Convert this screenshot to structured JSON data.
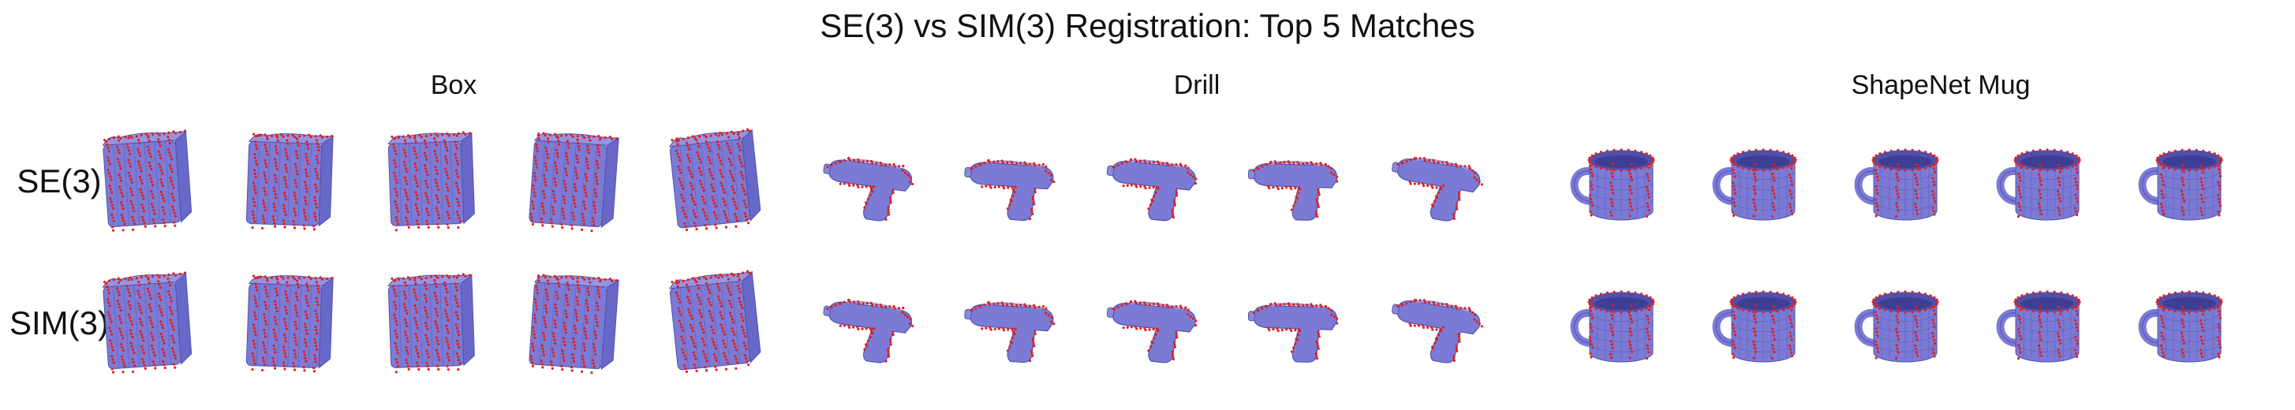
{
  "title": "SE(3) vs SIM(3) Registration: Top 5 Matches",
  "columns": [
    {
      "label": "Box",
      "shape": "box"
    },
    {
      "label": "Drill",
      "shape": "drill"
    },
    {
      "label": "ShapeNet Mug",
      "shape": "mug"
    }
  ],
  "rows": [
    {
      "label": "SE(3)"
    },
    {
      "label": "SIM(3)"
    }
  ],
  "matches_per_group": 5,
  "colors": {
    "mesh_fill": "#7b7bd6",
    "mesh_edge": "#5252b0",
    "points": "#e0201c",
    "background": "#ffffff"
  }
}
